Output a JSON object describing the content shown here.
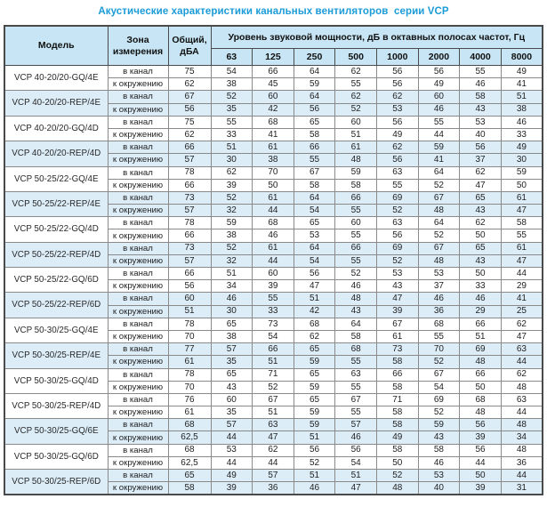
{
  "title": "Акустические характеристики канальных вентиляторов  серии VCP",
  "colors": {
    "accent": "#1b9bd7",
    "header_bg": "#c7e5f4",
    "shaded_row_bg": "#dcedf8",
    "border_dark": "#4a4a4a",
    "border_light": "#8a8a8a"
  },
  "table": {
    "headers": {
      "model": "Модель",
      "zone": "Зона\nизмерения",
      "total": "Общий,\nдБА",
      "spl": "Уровень звуковой мощности, дБ в октавных полосах частот, Гц",
      "frequencies": [
        "63",
        "125",
        "250",
        "500",
        "1000",
        "2000",
        "4000",
        "8000"
      ]
    },
    "zone_labels": {
      "duct": "в канал",
      "ambient": "к окружению"
    },
    "rows": [
      {
        "model": "VCP 40-20/20-GQ/4E",
        "shaded": false,
        "duct": {
          "total": "75",
          "values": [
            "54",
            "66",
            "64",
            "62",
            "56",
            "56",
            "55",
            "49"
          ]
        },
        "ambient": {
          "total": "62",
          "values": [
            "38",
            "45",
            "59",
            "55",
            "56",
            "49",
            "46",
            "41"
          ]
        }
      },
      {
        "model": "VCP 40-20/20-REP/4E",
        "shaded": true,
        "duct": {
          "total": "67",
          "values": [
            "52",
            "60",
            "64",
            "62",
            "62",
            "60",
            "58",
            "51"
          ]
        },
        "ambient": {
          "total": "56",
          "values": [
            "35",
            "42",
            "56",
            "52",
            "53",
            "46",
            "43",
            "38"
          ]
        }
      },
      {
        "model": "VCP 40-20/20-GQ/4D",
        "shaded": false,
        "duct": {
          "total": "75",
          "values": [
            "55",
            "68",
            "65",
            "60",
            "56",
            "55",
            "53",
            "46"
          ]
        },
        "ambient": {
          "total": "62",
          "values": [
            "33",
            "41",
            "58",
            "51",
            "49",
            "44",
            "40",
            "33"
          ]
        }
      },
      {
        "model": "VCP 40-20/20-REP/4D",
        "shaded": true,
        "duct": {
          "total": "66",
          "values": [
            "51",
            "61",
            "66",
            "61",
            "62",
            "59",
            "56",
            "49"
          ]
        },
        "ambient": {
          "total": "57",
          "values": [
            "30",
            "38",
            "55",
            "48",
            "56",
            "41",
            "37",
            "30"
          ]
        }
      },
      {
        "model": "VCP 50-25/22-GQ/4E",
        "shaded": false,
        "duct": {
          "total": "78",
          "values": [
            "62",
            "70",
            "67",
            "59",
            "63",
            "64",
            "62",
            "59"
          ]
        },
        "ambient": {
          "total": "66",
          "values": [
            "39",
            "50",
            "58",
            "58",
            "55",
            "52",
            "47",
            "50"
          ]
        }
      },
      {
        "model": "VCP 50-25/22-REP/4E",
        "shaded": true,
        "duct": {
          "total": "73",
          "values": [
            "52",
            "61",
            "64",
            "66",
            "69",
            "67",
            "65",
            "61"
          ]
        },
        "ambient": {
          "total": "57",
          "values": [
            "32",
            "44",
            "54",
            "55",
            "52",
            "48",
            "43",
            "47"
          ]
        }
      },
      {
        "model": "VCP 50-25/22-GQ/4D",
        "shaded": false,
        "duct": {
          "total": "78",
          "values": [
            "59",
            "68",
            "65",
            "60",
            "63",
            "64",
            "62",
            "58"
          ]
        },
        "ambient": {
          "total": "66",
          "values": [
            "38",
            "46",
            "53",
            "55",
            "56",
            "52",
            "50",
            "55"
          ]
        }
      },
      {
        "model": "VCP 50-25/22-REP/4D",
        "shaded": true,
        "duct": {
          "total": "73",
          "values": [
            "52",
            "61",
            "64",
            "66",
            "69",
            "67",
            "65",
            "61"
          ]
        },
        "ambient": {
          "total": "57",
          "values": [
            "32",
            "44",
            "54",
            "55",
            "52",
            "48",
            "43",
            "47"
          ]
        }
      },
      {
        "model": "VCP 50-25/22-GQ/6D",
        "shaded": false,
        "duct": {
          "total": "66",
          "values": [
            "51",
            "60",
            "56",
            "52",
            "53",
            "53",
            "50",
            "44"
          ]
        },
        "ambient": {
          "total": "56",
          "values": [
            "34",
            "39",
            "47",
            "46",
            "43",
            "37",
            "33",
            "29"
          ]
        }
      },
      {
        "model": "VCP 50-25/22-REP/6D",
        "shaded": true,
        "duct": {
          "total": "60",
          "values": [
            "46",
            "55",
            "51",
            "48",
            "47",
            "46",
            "46",
            "41"
          ]
        },
        "ambient": {
          "total": "51",
          "values": [
            "30",
            "33",
            "42",
            "43",
            "39",
            "36",
            "29",
            "25"
          ]
        }
      },
      {
        "model": "VCP 50-30/25-GQ/4E",
        "shaded": false,
        "duct": {
          "total": "78",
          "values": [
            "65",
            "73",
            "68",
            "64",
            "67",
            "68",
            "66",
            "62"
          ]
        },
        "ambient": {
          "total": "70",
          "values": [
            "38",
            "54",
            "62",
            "58",
            "61",
            "55",
            "51",
            "47"
          ]
        }
      },
      {
        "model": "VCP 50-30/25-REP/4E",
        "shaded": true,
        "duct": {
          "total": "77",
          "values": [
            "57",
            "66",
            "65",
            "68",
            "73",
            "70",
            "69",
            "63"
          ]
        },
        "ambient": {
          "total": "61",
          "values": [
            "35",
            "51",
            "59",
            "55",
            "58",
            "52",
            "48",
            "44"
          ]
        }
      },
      {
        "model": "VCP 50-30/25-GQ/4D",
        "shaded": false,
        "duct": {
          "total": "78",
          "values": [
            "65",
            "71",
            "65",
            "63",
            "66",
            "67",
            "66",
            "62"
          ]
        },
        "ambient": {
          "total": "70",
          "values": [
            "43",
            "52",
            "59",
            "55",
            "58",
            "54",
            "50",
            "48"
          ]
        }
      },
      {
        "model": "VCP 50-30/25-REP/4D",
        "shaded": false,
        "duct": {
          "total": "76",
          "values": [
            "60",
            "67",
            "65",
            "67",
            "71",
            "69",
            "68",
            "63"
          ]
        },
        "ambient": {
          "total": "61",
          "values": [
            "35",
            "51",
            "59",
            "55",
            "58",
            "52",
            "48",
            "44"
          ]
        }
      },
      {
        "model": "VCP 50-30/25-GQ/6E",
        "shaded": true,
        "duct": {
          "total": "68",
          "values": [
            "57",
            "63",
            "59",
            "57",
            "58",
            "59",
            "56",
            "48"
          ]
        },
        "ambient": {
          "total": "62,5",
          "values": [
            "44",
            "47",
            "51",
            "46",
            "49",
            "43",
            "39",
            "34"
          ]
        }
      },
      {
        "model": "VCP 50-30/25-GQ/6D",
        "shaded": false,
        "duct": {
          "total": "68",
          "values": [
            "53",
            "62",
            "56",
            "56",
            "58",
            "58",
            "56",
            "48"
          ]
        },
        "ambient": {
          "total": "62,5",
          "values": [
            "44",
            "44",
            "52",
            "54",
            "50",
            "46",
            "44",
            "36"
          ]
        }
      },
      {
        "model": "VCP 50-30/25-REP/6D",
        "shaded": true,
        "duct": {
          "total": "65",
          "values": [
            "49",
            "57",
            "51",
            "51",
            "52",
            "53",
            "50",
            "44"
          ]
        },
        "ambient": {
          "total": "58",
          "values": [
            "39",
            "36",
            "46",
            "47",
            "48",
            "40",
            "39",
            "31"
          ]
        }
      }
    ]
  }
}
